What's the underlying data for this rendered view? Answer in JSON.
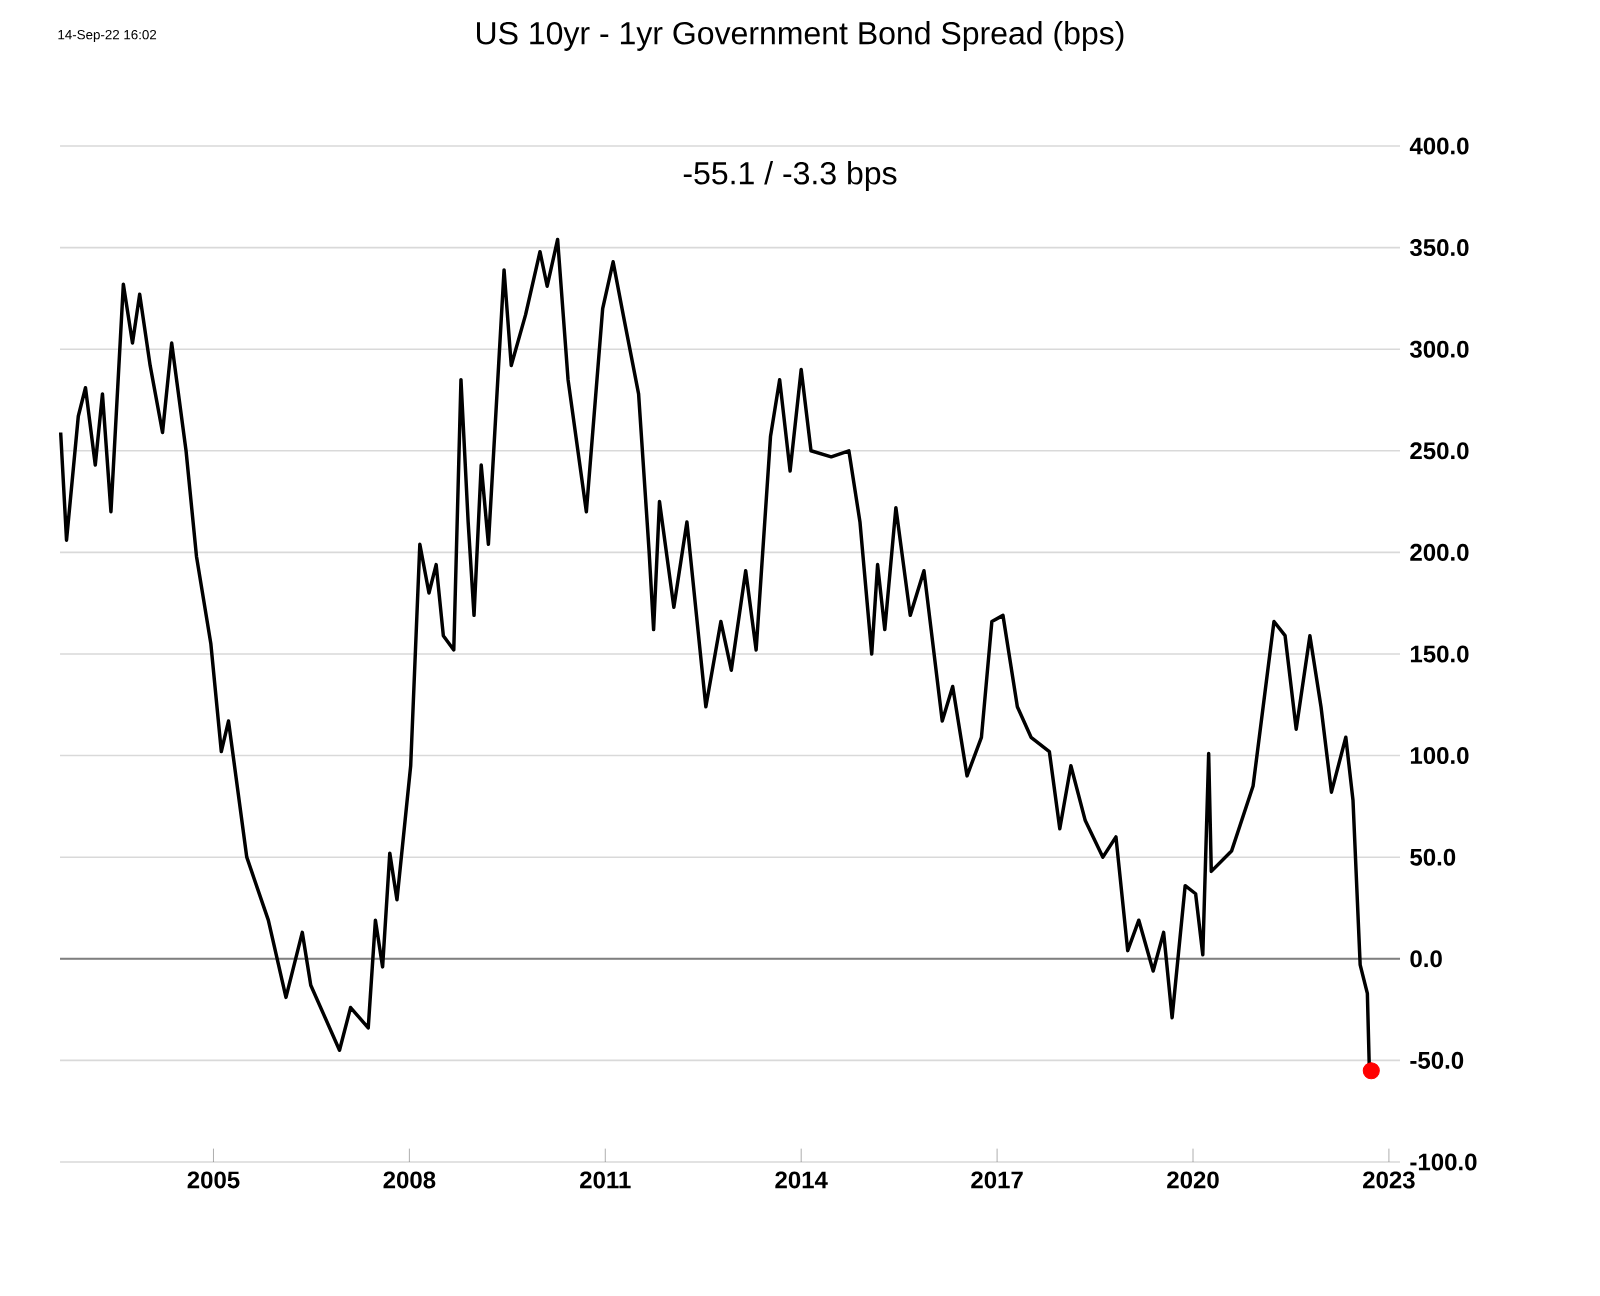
{
  "chart_data": {
    "type": "line",
    "title": "US 10yr - 1yr Government Bond Spread (bps)",
    "subtitle": "-55.1  /  -3.3 bps",
    "annotations": [
      "14-Sep-22 16:02"
    ],
    "xlim": [
      2002.65,
      2023.17
    ],
    "xticks": [
      2005,
      2008,
      2011,
      2014,
      2017,
      2020,
      2023
    ],
    "ylim": [
      -100,
      400
    ],
    "yticks": [
      {
        "value": 400,
        "label": "400.0"
      },
      {
        "value": 350,
        "label": "350.0"
      },
      {
        "value": 300,
        "label": "300.0"
      },
      {
        "value": 250,
        "label": "250.0"
      },
      {
        "value": 200,
        "label": "200.0"
      },
      {
        "value": 150,
        "label": "150.0"
      },
      {
        "value": 100,
        "label": "100.0"
      },
      {
        "value": 50,
        "label": "50.0"
      },
      {
        "value": 0,
        "label": "0.0"
      },
      {
        "value": -50,
        "label": "-50.0"
      },
      {
        "value": -100,
        "label": "-100.0"
      }
    ],
    "grid": "y",
    "ref_lines": [
      {
        "axis": "y",
        "value": 0,
        "color": "#7f7f7f"
      }
    ],
    "series": [
      {
        "color": "#000000",
        "marker": "none",
        "x": [
          2002.66,
          2002.75,
          2002.93,
          2003.04,
          2003.19,
          2003.3,
          2003.43,
          2003.62,
          2003.76,
          2003.87,
          2004.03,
          2004.22,
          2004.36,
          2004.58,
          2004.74,
          2004.96,
          2005.12,
          2005.23,
          2005.51,
          2005.84,
          2006.11,
          2006.36,
          2006.49,
          2006.93,
          2007.1,
          2007.37,
          2007.48,
          2007.59,
          2007.7,
          2007.81,
          2008.02,
          2008.16,
          2008.3,
          2008.41,
          2008.52,
          2008.68,
          2008.79,
          2008.9,
          2008.99,
          2009.1,
          2009.21,
          2009.45,
          2009.56,
          2009.78,
          2010.0,
          2010.11,
          2010.27,
          2010.43,
          2010.71,
          2010.96,
          2011.12,
          2011.28,
          2011.51,
          2011.67,
          2011.74,
          2011.83,
          2012.05,
          2012.25,
          2012.54,
          2012.77,
          2012.93,
          2013.15,
          2013.31,
          2013.53,
          2013.67,
          2013.83,
          2014.0,
          2014.15,
          2014.46,
          2014.73,
          2014.9,
          2015.08,
          2015.17,
          2015.28,
          2015.45,
          2015.67,
          2015.88,
          2016.16,
          2016.32,
          2016.54,
          2016.76,
          2016.92,
          2017.09,
          2017.31,
          2017.52,
          2017.8,
          2017.96,
          2018.13,
          2018.35,
          2018.62,
          2018.82,
          2019.0,
          2019.17,
          2019.39,
          2019.55,
          2019.68,
          2019.88,
          2020.04,
          2020.15,
          2020.24,
          2020.28,
          2020.59,
          2020.92,
          2021.24,
          2021.41,
          2021.58,
          2021.79,
          2021.96,
          2022.12,
          2022.34,
          2022.45,
          2022.56,
          2022.67,
          2022.7,
          2022.73
        ],
        "values": [
          259,
          206,
          267,
          281,
          243,
          278,
          220,
          332,
          303,
          327,
          292,
          259,
          303,
          250,
          198,
          155,
          102,
          117,
          50,
          19,
          -19,
          13,
          -13,
          -45,
          -24,
          -34,
          19,
          -4,
          52,
          29,
          95,
          204,
          180,
          194,
          159,
          152,
          285,
          215,
          169,
          243,
          204,
          339,
          292,
          317,
          348,
          331,
          354,
          285,
          220,
          320,
          343,
          316,
          278,
          201,
          162,
          225,
          173,
          215,
          124,
          166,
          142,
          191,
          152,
          257,
          285,
          240,
          290,
          250,
          247,
          250,
          215,
          150,
          194,
          162,
          222,
          169,
          191,
          117,
          134,
          90,
          109,
          166,
          169,
          124,
          109,
          102,
          64,
          95,
          68,
          50,
          60,
          4,
          19,
          -6,
          13,
          -29,
          36,
          32,
          2,
          101,
          43,
          53,
          85,
          166,
          159,
          113,
          159,
          124,
          82,
          109,
          78,
          -3,
          -17,
          -54,
          -55.1
        ]
      },
      {
        "type": "scatter",
        "color": "#ff0000",
        "marker": "circle",
        "x": [
          2022.73
        ],
        "values": [
          -55.1
        ]
      }
    ]
  }
}
